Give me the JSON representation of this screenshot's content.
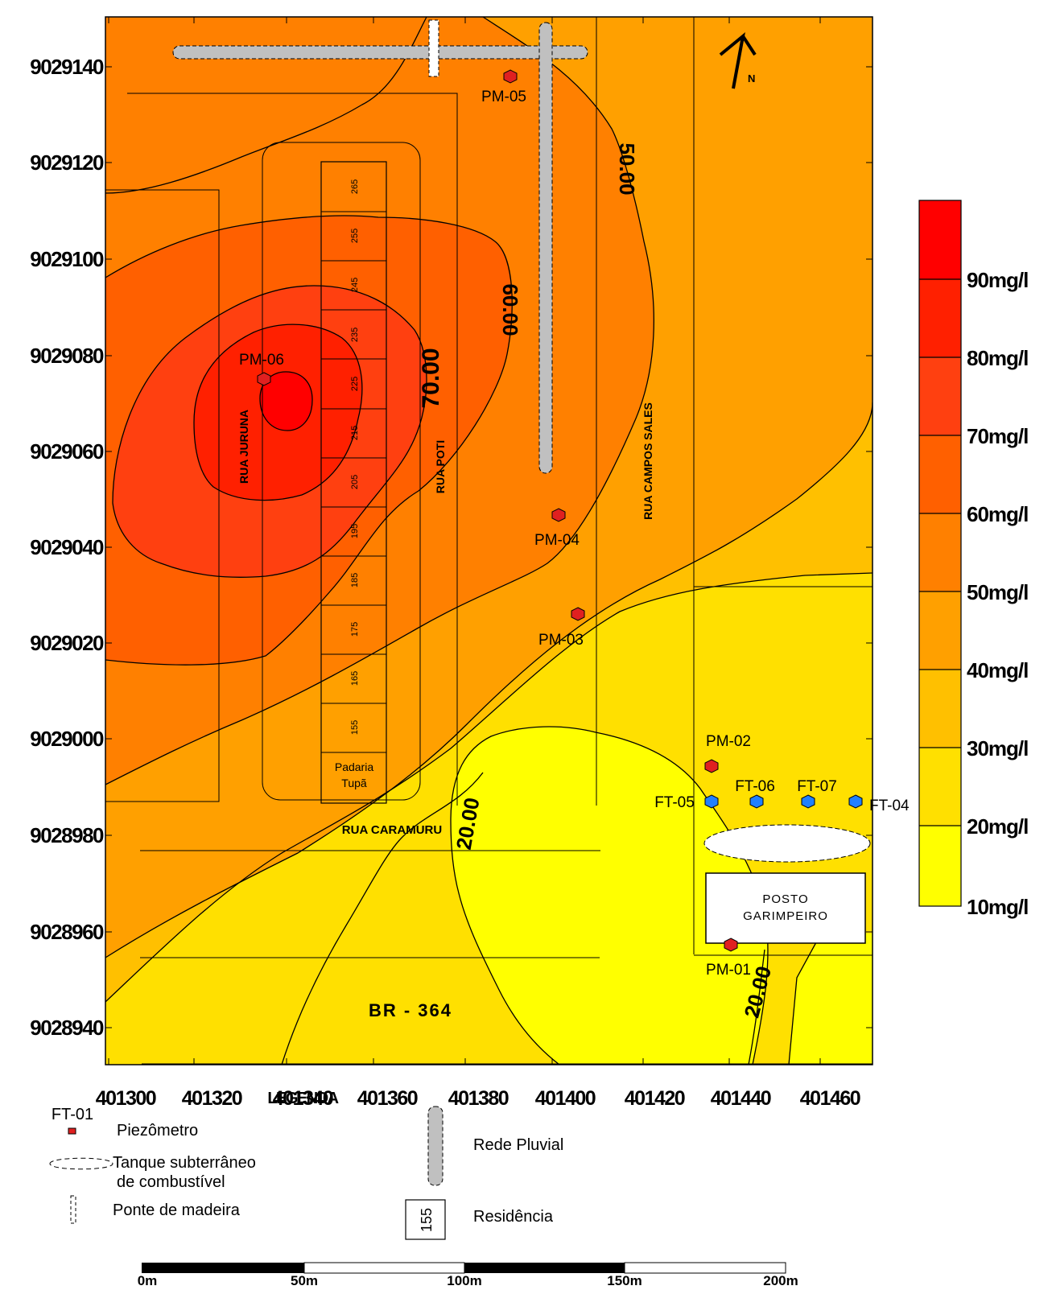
{
  "map": {
    "north_label": "N",
    "y_ticks": [
      "9029140",
      "9029120",
      "9029100",
      "9029080",
      "9029060",
      "9029040",
      "9029020",
      "9029000",
      "9028980",
      "9028960",
      "9028940"
    ],
    "x_ticks": [
      "401300",
      "401320",
      "401340",
      "401360",
      "401380",
      "401400",
      "401420",
      "401440",
      "401460"
    ],
    "x_overlap_text": "LEGENDA",
    "contour_labels": {
      "c50": "50.00",
      "c60": "60.00",
      "c70": "70.00",
      "c20a": "20.00",
      "c20b": "20.00"
    },
    "streets": {
      "jurua": "RUA JURUNA",
      "poti": "RUA POTI",
      "campos_sales": "RUA CAMPOS SALES",
      "caramuru": "RUA CARAMURU",
      "br364": "BR - 364"
    },
    "lots": [
      "265",
      "255",
      "245",
      "235",
      "225",
      "215",
      "205",
      "195",
      "185",
      "175",
      "165",
      "155"
    ],
    "padaria_line1": "Padaria",
    "padaria_line2": "Tupã",
    "posto_line1": "POSTO",
    "posto_line2": "GARIMPEIRO",
    "wells": {
      "pm01": "PM-01",
      "pm02": "PM-02",
      "pm03": "PM-03",
      "pm04": "PM-04",
      "pm05": "PM-05",
      "pm06": "PM-06",
      "ft04": "FT-04",
      "ft05": "FT-05",
      "ft06": "FT-06",
      "ft07": "FT-07"
    },
    "colors": {
      "c10_20": "#ffff00",
      "c20_30": "#ffe000",
      "c30_40": "#ffc000",
      "c40_50": "#ffa000",
      "c50_60": "#ff8000",
      "c60_70": "#ff6000",
      "c70_80": "#ff4010",
      "c80_90": "#ff2000",
      "c90_100": "#ff0000",
      "piezometer": "#e02020",
      "well_blue": "#2080ff",
      "drain": "#c0c0c0"
    }
  },
  "colorbar": {
    "labels": [
      "90mg/l",
      "80mg/l",
      "70mg/l",
      "60mg/l",
      "50mg/l",
      "40mg/l",
      "30mg/l",
      "20mg/l",
      "10mg/l"
    ]
  },
  "legend": {
    "ft_label": "FT-01",
    "piezometro": "Piezômetro",
    "tanque_line1": "Tanque subterrâneo",
    "tanque_line2": "de combustível",
    "ponte": "Ponte de madeira",
    "rede": "Rede Pluvial",
    "residencia_num": "155",
    "residencia": "Residência"
  },
  "scale_bar": {
    "labels": [
      "0m",
      "50m",
      "100m",
      "150m",
      "200m"
    ]
  }
}
